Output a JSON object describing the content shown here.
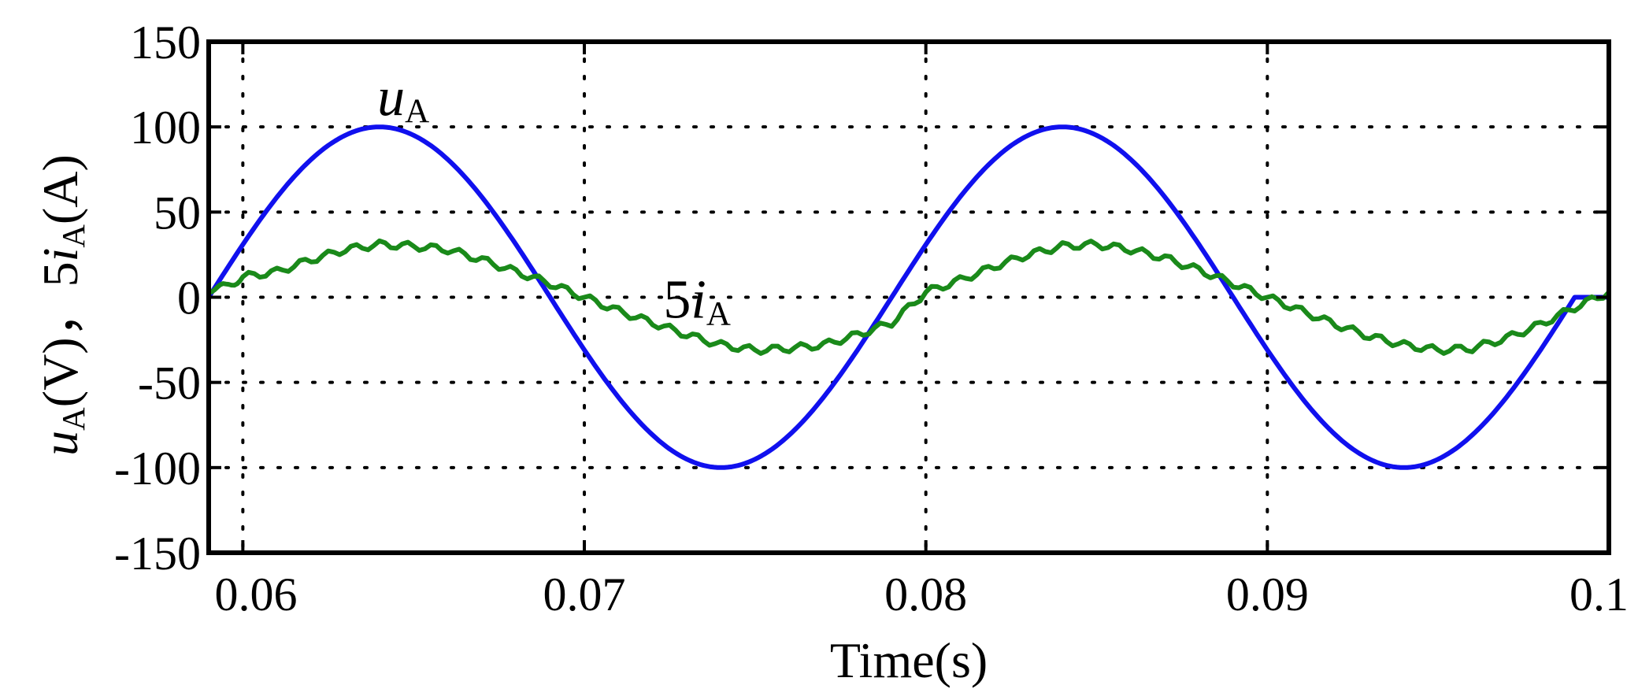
{
  "chart_data": {
    "type": "line",
    "title": "",
    "xlabel": "Time(s)",
    "ylabel": {
      "parts": [
        {
          "text": "u",
          "style": "italic"
        },
        {
          "text": "A",
          "style": "sub"
        },
        {
          "text": "(V)，",
          "style": "normal"
        },
        {
          "text": "5",
          "style": "normal"
        },
        {
          "text": "i",
          "style": "italic"
        },
        {
          "text": "A",
          "style": "sub"
        },
        {
          "text": "(A)",
          "style": "normal"
        }
      ]
    },
    "xlim": [
      0.059,
      0.1
    ],
    "ylim": [
      -150,
      150
    ],
    "xticks": [
      0.06,
      0.07,
      0.08,
      0.09,
      0.1
    ],
    "xtick_labels": [
      "0.06",
      "0.07",
      "0.08",
      "0.09",
      "0.1"
    ],
    "yticks": [
      150,
      100,
      50,
      0,
      -50,
      -100,
      -150
    ],
    "ytick_labels": [
      "150",
      "100",
      "50",
      "0",
      "-50",
      "-100",
      "-150"
    ],
    "grid": true,
    "legend": "none",
    "series": [
      {
        "label_parts": [
          {
            "text": "u",
            "style": "italic"
          },
          {
            "text": "A",
            "style": "sub"
          }
        ],
        "color": "#1010ee",
        "x": [
          0.059,
          0.06,
          0.061,
          0.062,
          0.063,
          0.064,
          0.065,
          0.066,
          0.067,
          0.068,
          0.069,
          0.07,
          0.071,
          0.072,
          0.073,
          0.074,
          0.075,
          0.076,
          0.077,
          0.078,
          0.079,
          0.08,
          0.081,
          0.082,
          0.083,
          0.084,
          0.085,
          0.086,
          0.087,
          0.088,
          0.089,
          0.09,
          0.091,
          0.092,
          0.093,
          0.094,
          0.095,
          0.096,
          0.097,
          0.098,
          0.099,
          0.1
        ],
        "y": [
          0,
          30,
          58,
          80,
          95,
          100,
          95,
          80,
          58,
          30,
          0,
          -30,
          -58,
          -80,
          -95,
          -100,
          -95,
          -80,
          -58,
          -30,
          0,
          30,
          58,
          80,
          95,
          100,
          95,
          80,
          58,
          30,
          0,
          -30,
          -58,
          -80,
          -95,
          -100,
          -95,
          -80,
          -58,
          -30,
          0,
          0
        ]
      },
      {
        "label_parts": [
          {
            "text": "5",
            "style": "normal"
          },
          {
            "text": "i",
            "style": "italic"
          },
          {
            "text": "A",
            "style": "sub"
          }
        ],
        "color": "#1a8a1a",
        "x": [
          0.059,
          0.0595,
          0.06,
          0.061,
          0.062,
          0.063,
          0.064,
          0.065,
          0.066,
          0.067,
          0.068,
          0.069,
          0.07,
          0.071,
          0.072,
          0.073,
          0.074,
          0.075,
          0.076,
          0.077,
          0.078,
          0.079,
          0.08,
          0.081,
          0.082,
          0.083,
          0.084,
          0.085,
          0.086,
          0.087,
          0.088,
          0.089,
          0.09,
          0.091,
          0.092,
          0.093,
          0.094,
          0.095,
          0.096,
          0.097,
          0.098,
          0.099,
          0.1
        ],
        "y": [
          5,
          6,
          12,
          15,
          22,
          28,
          31,
          30,
          28,
          22,
          15,
          8,
          0,
          -8,
          -15,
          -22,
          -28,
          -31,
          -30,
          -28,
          -22,
          -15,
          3,
          10,
          18,
          25,
          30,
          31,
          28,
          23,
          16,
          8,
          0,
          -8,
          -16,
          -23,
          -28,
          -31,
          -30,
          -24,
          -16,
          -6,
          3
        ]
      }
    ],
    "annotations": [
      {
        "parts": [
          {
            "text": "u",
            "style": "italic"
          },
          {
            "text": "A",
            "style": "sub"
          }
        ],
        "x": 0.0647,
        "y": 107
      },
      {
        "parts": [
          {
            "text": "5",
            "style": "normal"
          },
          {
            "text": "i",
            "style": "italic"
          },
          {
            "text": "A",
            "style": "sub"
          }
        ],
        "x": 0.0733,
        "y": -12
      }
    ]
  }
}
